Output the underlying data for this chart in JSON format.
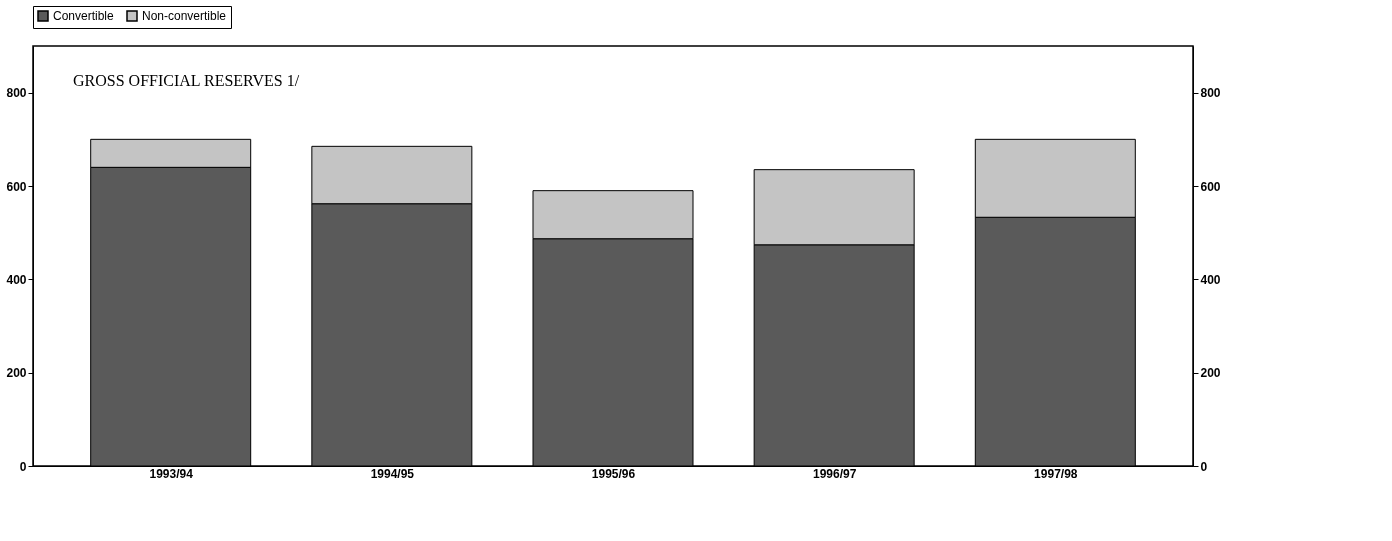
{
  "chart_data": {
    "type": "bar",
    "stacked": true,
    "title": "GROSS OFFICIAL RESERVES 1/",
    "categories": [
      "1993/94",
      "1994/95",
      "1995/96",
      "1996/97",
      "1997/98"
    ],
    "series": [
      {
        "name": "Convertible",
        "color": "#5a5a5a",
        "values": [
          640,
          562,
          487,
          474,
          533
        ]
      },
      {
        "name": "Non-convertible",
        "color": "#c4c4c4",
        "values": [
          60,
          123,
          103,
          161,
          167
        ]
      }
    ],
    "ylim": [
      0,
      900
    ],
    "yticks": [
      0,
      200,
      400,
      600,
      800
    ],
    "y2lim": [
      0,
      900
    ],
    "y2ticks": [
      0,
      200,
      400,
      600,
      800
    ],
    "grid": false,
    "legend": "top"
  }
}
